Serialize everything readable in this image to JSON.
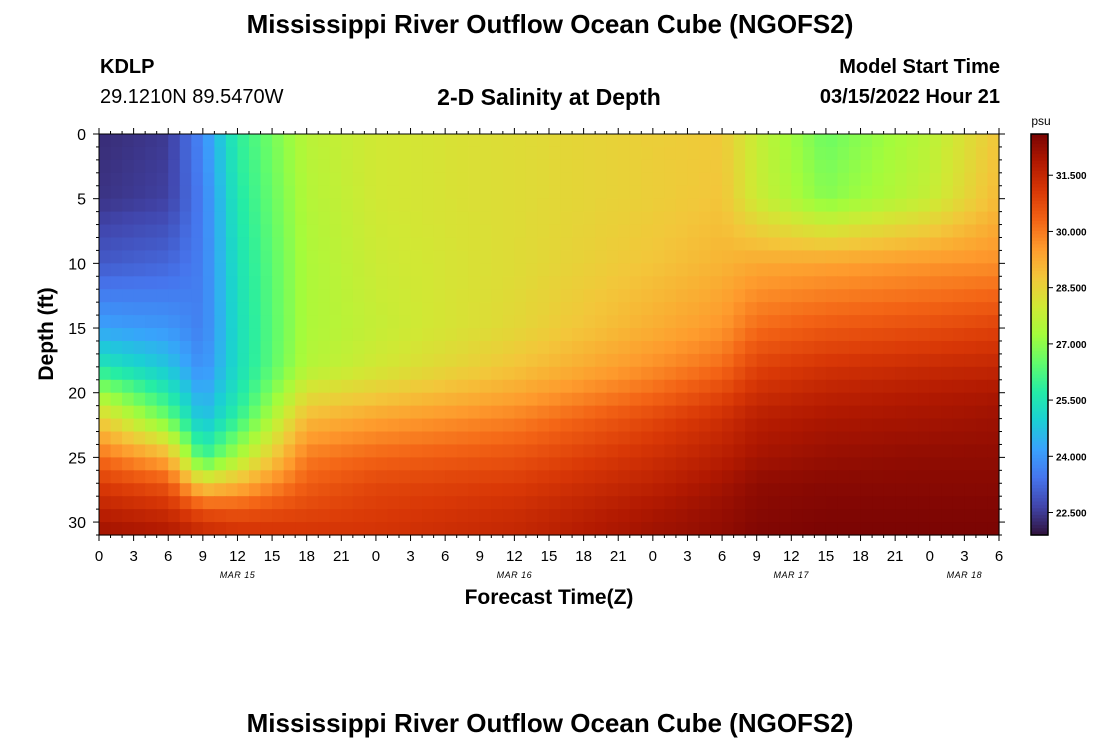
{
  "header": {
    "title": "Mississippi River Outflow Ocean Cube (NGOFS2)",
    "station_id": "KDLP",
    "station_coords": "29.1210N  89.5470W",
    "subtitle": "2-D Salinity at Depth",
    "model_start_label": "Model Start Time",
    "model_start_value": "03/15/2022 Hour 21"
  },
  "footer": {
    "title": "Mississippi River Outflow Ocean Cube (NGOFS2)"
  },
  "chart_data": {
    "type": "heatmap",
    "title": "2-D Salinity at Depth",
    "xlabel": "Forecast Time(Z)",
    "ylabel": "Depth (ft)",
    "x_tick_labels": [
      "0",
      "3",
      "6",
      "9",
      "12",
      "15",
      "18",
      "21",
      "0",
      "3",
      "6",
      "9",
      "12",
      "15",
      "18",
      "21",
      "0",
      "3",
      "6",
      "9",
      "12",
      "15",
      "18",
      "21",
      "0",
      "3",
      "6"
    ],
    "x_hours": [
      0,
      3,
      6,
      9,
      12,
      15,
      18,
      21,
      24,
      27,
      30,
      33,
      36,
      39,
      42,
      45,
      48,
      51,
      54,
      57,
      60,
      63,
      66,
      69,
      72,
      75,
      78
    ],
    "x_date_labels": [
      {
        "label": "MAR 15",
        "hour": 12
      },
      {
        "label": "MAR 16",
        "hour": 36
      },
      {
        "label": "MAR 17",
        "hour": 60
      },
      {
        "label": "MAR 18",
        "hour": 75
      }
    ],
    "xlim": [
      0,
      78
    ],
    "y_ticks": [
      0,
      5,
      10,
      15,
      20,
      25,
      30
    ],
    "ylim": [
      0,
      31
    ],
    "y_inverted": true,
    "colorbar": {
      "unit": "psu",
      "ticks": [
        "22.500",
        "24.000",
        "25.500",
        "27.000",
        "28.500",
        "30.000",
        "31.500"
      ],
      "tick_values": [
        22.5,
        24.0,
        25.5,
        27.0,
        28.5,
        30.0,
        31.5
      ],
      "range": [
        21.9,
        32.6
      ],
      "colormap": [
        "#30123b",
        "#4145ab",
        "#4675ed",
        "#39a2fc",
        "#1bcfd4",
        "#24eca6",
        "#61fc6c",
        "#a4fc3b",
        "#d1e834",
        "#f3c63a",
        "#fe9b2d",
        "#f36315",
        "#d93806",
        "#b11901",
        "#7a0403"
      ]
    },
    "salinity_grid": {
      "hours": [
        0,
        6,
        9,
        12,
        18,
        24,
        36,
        48,
        54,
        57,
        63,
        72,
        78
      ],
      "depths": [
        0,
        5,
        10,
        15,
        18,
        20,
        22,
        25,
        27,
        29,
        31
      ],
      "values": [
        [
          22.3,
          22.5,
          23.8,
          25.8,
          27.6,
          28.0,
          28.3,
          28.6,
          28.7,
          27.8,
          26.6,
          27.6,
          28.8
        ],
        [
          22.4,
          22.6,
          23.6,
          25.6,
          27.5,
          28.0,
          28.3,
          28.6,
          28.8,
          27.9,
          26.9,
          27.8,
          29.0
        ],
        [
          23.0,
          23.2,
          23.6,
          25.4,
          27.4,
          27.9,
          28.3,
          28.8,
          29.1,
          29.3,
          29.4,
          29.6,
          29.7
        ],
        [
          24.2,
          24.0,
          23.6,
          25.3,
          27.4,
          27.8,
          28.4,
          29.2,
          29.6,
          30.2,
          30.5,
          30.7,
          30.9
        ],
        [
          25.6,
          24.8,
          23.8,
          25.3,
          27.5,
          28.0,
          28.8,
          29.7,
          30.2,
          30.9,
          31.2,
          31.4,
          31.5
        ],
        [
          27.2,
          25.6,
          24.2,
          25.5,
          28.2,
          28.6,
          29.3,
          30.2,
          30.8,
          31.3,
          31.6,
          31.8,
          31.9
        ],
        [
          28.6,
          26.6,
          24.6,
          25.9,
          29.0,
          29.4,
          29.9,
          30.8,
          31.3,
          31.7,
          31.9,
          32.0,
          32.1
        ],
        [
          30.2,
          29.2,
          26.0,
          27.4,
          30.0,
          30.3,
          30.6,
          31.3,
          31.7,
          32.0,
          32.2,
          32.3,
          32.3
        ],
        [
          31.0,
          30.5,
          28.5,
          29.0,
          30.4,
          30.8,
          31.0,
          31.6,
          32.0,
          32.3,
          32.4,
          32.4,
          32.4
        ],
        [
          31.6,
          31.3,
          30.6,
          30.5,
          30.8,
          31.0,
          31.3,
          31.9,
          32.2,
          32.4,
          32.5,
          32.5,
          32.5
        ],
        [
          32.1,
          31.9,
          31.5,
          31.3,
          31.2,
          31.2,
          31.5,
          32.1,
          32.3,
          32.5,
          32.6,
          32.6,
          32.6
        ]
      ]
    }
  }
}
